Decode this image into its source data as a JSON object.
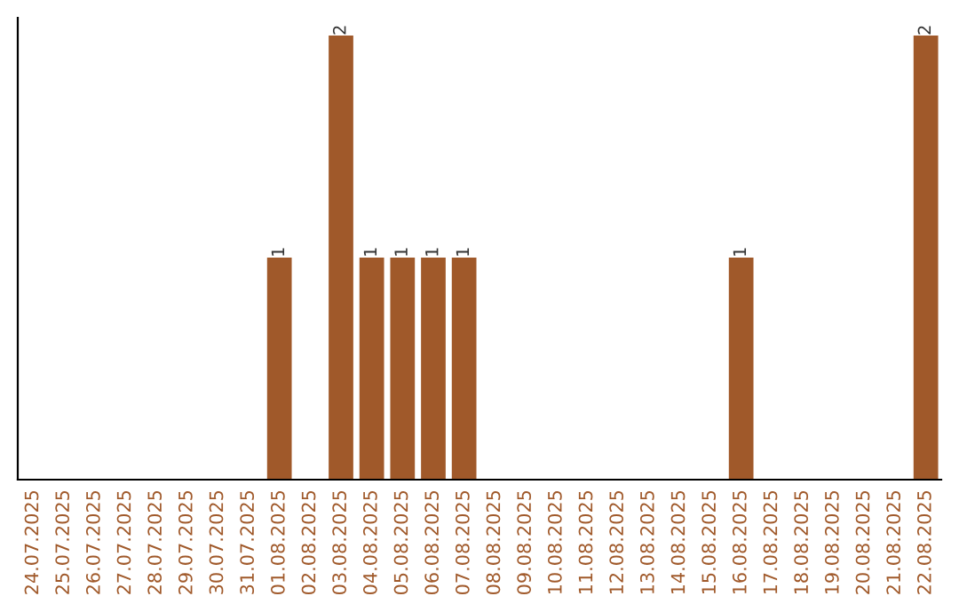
{
  "chart_data": {
    "type": "bar",
    "categories": [
      "24.07.2025",
      "25.07.2025",
      "26.07.2025",
      "27.07.2025",
      "28.07.2025",
      "29.07.2025",
      "30.07.2025",
      "31.07.2025",
      "01.08.2025",
      "02.08.2025",
      "03.08.2025",
      "04.08.2025",
      "05.08.2025",
      "06.08.2025",
      "07.08.2025",
      "08.08.2025",
      "09.08.2025",
      "10.08.2025",
      "11.08.2025",
      "12.08.2025",
      "13.08.2025",
      "14.08.2025",
      "15.08.2025",
      "16.08.2025",
      "17.08.2025",
      "18.08.2025",
      "19.08.2025",
      "20.08.2025",
      "21.08.2025",
      "22.08.2025"
    ],
    "values": [
      null,
      null,
      null,
      null,
      null,
      null,
      null,
      null,
      1,
      null,
      2,
      1,
      1,
      1,
      1,
      null,
      null,
      null,
      null,
      null,
      null,
      null,
      null,
      1,
      null,
      null,
      null,
      null,
      null,
      2
    ],
    "color": "#a0592a",
    "data_labels": true,
    "grid": false,
    "legend": false,
    "tick_labels": "x"
  }
}
